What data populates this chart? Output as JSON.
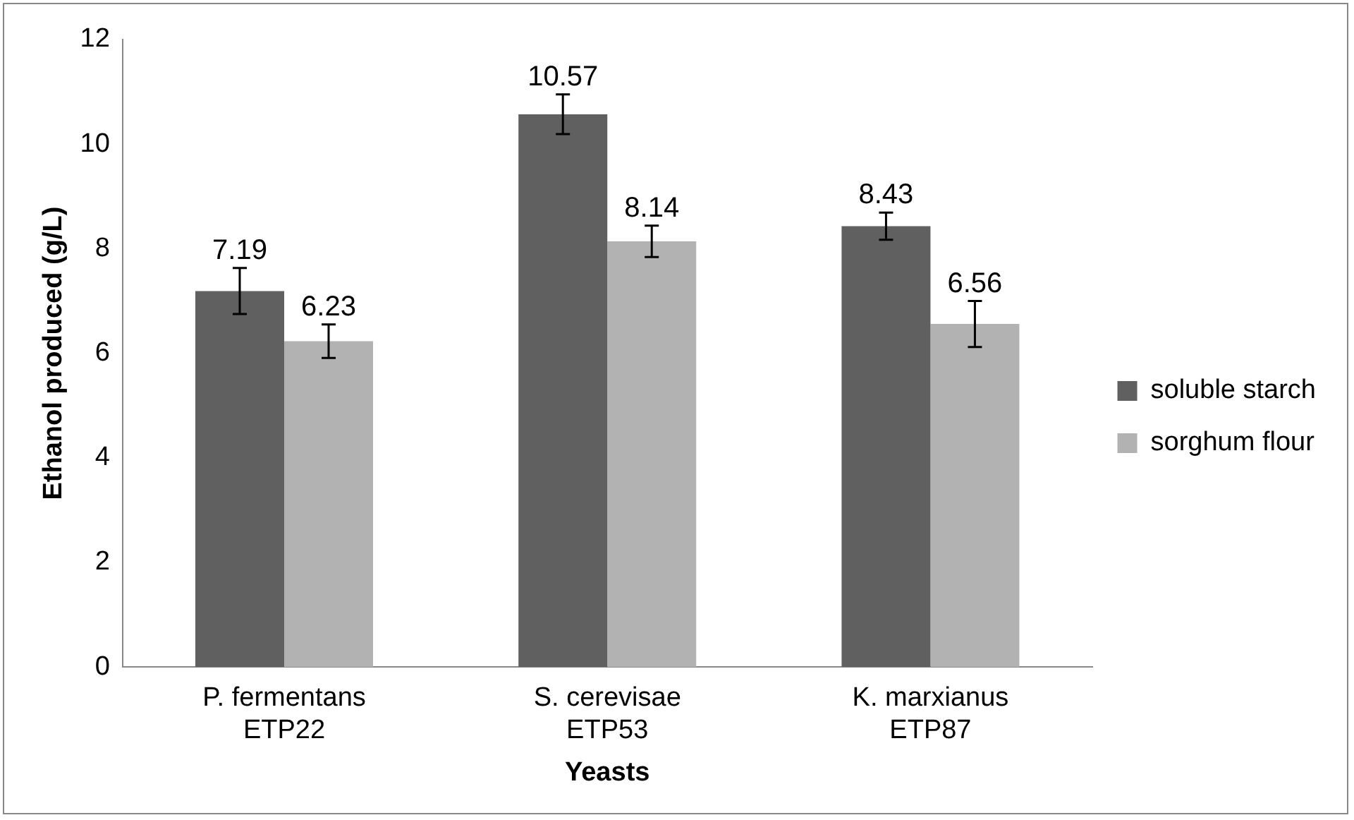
{
  "chart_data": {
    "type": "bar",
    "xlabel": "Yeasts",
    "ylabel": "Ethanol produced (g/L)",
    "categories": [
      "P. fermentans ETP22",
      "S. cerevisae ETP53",
      "K. marxianus ETP87"
    ],
    "series": [
      {
        "name": "soluble starch",
        "color": "#606060",
        "values": [
          7.19,
          10.57,
          8.43
        ],
        "errors": [
          0.44,
          0.38,
          0.26
        ]
      },
      {
        "name": "sorghum flour",
        "color": "#b2b2b2",
        "values": [
          6.23,
          8.14,
          6.56
        ],
        "errors": [
          0.32,
          0.3,
          0.44
        ]
      }
    ],
    "ylim": [
      0,
      12
    ],
    "yticks": [
      0,
      2,
      4,
      6,
      8,
      10,
      12
    ],
    "grid": false,
    "legend": "right",
    "data_labels": true
  }
}
